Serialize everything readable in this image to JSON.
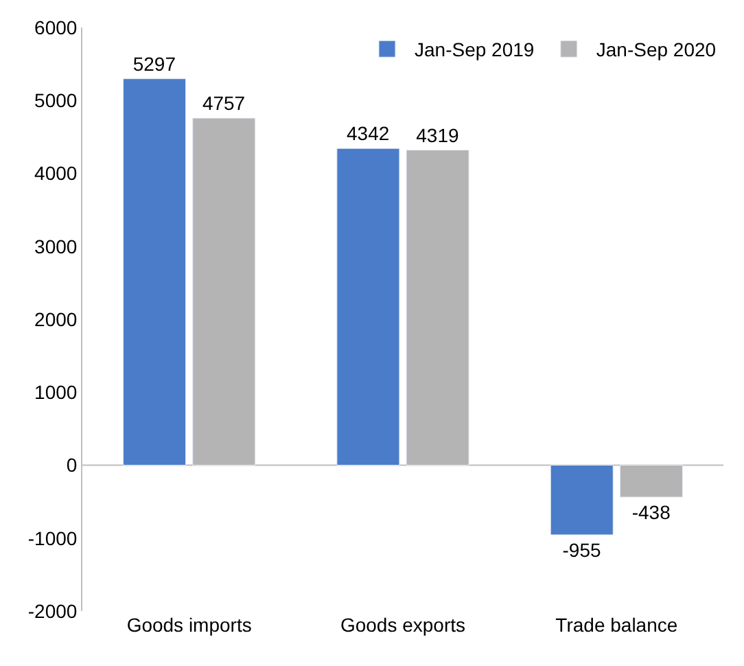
{
  "chart_data": {
    "type": "bar",
    "categories": [
      "Goods imports",
      "Goods exports",
      "Trade balance"
    ],
    "series": [
      {
        "name": "Jan-Sep 2019",
        "color": "#4a7cc9",
        "values": [
          5297,
          4342,
          -955
        ]
      },
      {
        "name": "Jan-Sep 2020",
        "color": "#b4b4b4",
        "values": [
          4757,
          4319,
          -438
        ]
      }
    ],
    "ylim": [
      -2000,
      6000
    ],
    "yticks": [
      -2000,
      -1000,
      0,
      1000,
      2000,
      3000,
      4000,
      5000,
      6000
    ],
    "ref_lines": [
      {
        "axis": "y",
        "value": 0,
        "color": "#bfbfbf"
      }
    ],
    "data_labels": true,
    "grid": false,
    "legend": "top right"
  }
}
